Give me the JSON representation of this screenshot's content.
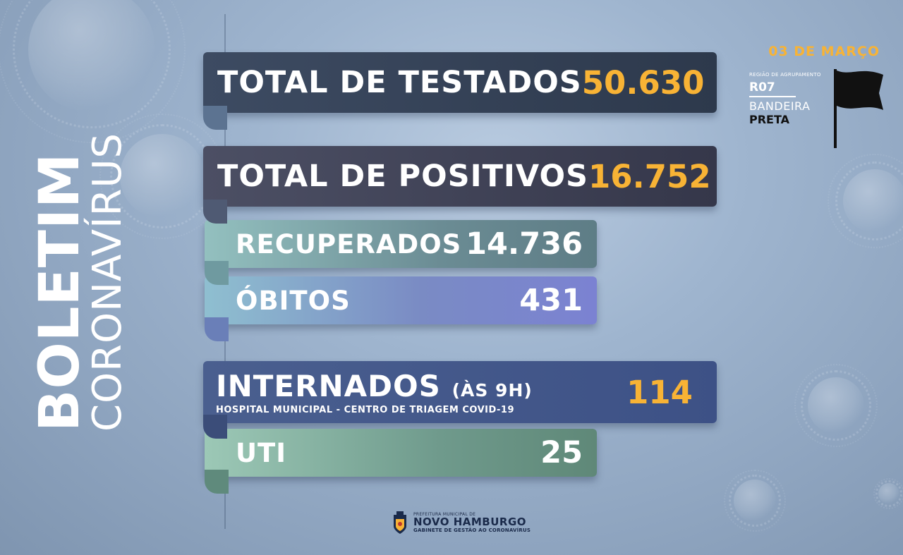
{
  "side_title": {
    "bold": "BOLETIM",
    "light": "CORONAVÍRUS"
  },
  "date": "03 DE MARÇO",
  "region": {
    "caption": "REGIÃO DE AGRUPAMENTO",
    "code": "R07",
    "flag_label": "BANDEIRA",
    "flag_value": "PRETA"
  },
  "stats": {
    "tested": {
      "label": "TOTAL DE TESTADOS",
      "value": "50.630"
    },
    "positive": {
      "label": "TOTAL DE POSITIVOS",
      "value": "16.752"
    },
    "recovered": {
      "label": "RECUPERADOS",
      "value": "14.736"
    },
    "deaths": {
      "label": "ÓBITOS",
      "value": "431"
    },
    "hospitalized": {
      "label": "INTERNADOS",
      "time": "(ÀS 9H)",
      "subtitle": "HOSPITAL MUNICIPAL - CENTRO DE TRIAGEM COVID-19",
      "value": "114"
    },
    "icu": {
      "label": "UTI",
      "value": "25"
    }
  },
  "footer": {
    "small": "PREFEITURA MUNICIPAL DE",
    "name": "NOVO HAMBURGO",
    "sub": "GABINETE DE GESTÃO AO CORONAVÍRUS"
  },
  "colors": {
    "accent": "#f8b335",
    "flag": "#111111"
  }
}
